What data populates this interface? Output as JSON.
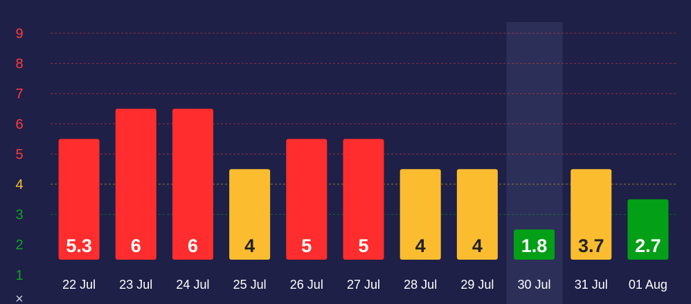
{
  "chart_data": {
    "type": "bar",
    "categories": [
      "22 Jul",
      "23 Jul",
      "24 Jul",
      "25 Jul",
      "26 Jul",
      "27 Jul",
      "28 Jul",
      "29 Jul",
      "30 Jul",
      "31 Jul",
      "01 Aug"
    ],
    "values": [
      5.3,
      6,
      6,
      4,
      5,
      5,
      4,
      4,
      1.8,
      3.7,
      2.7
    ],
    "value_labels": [
      "5.3",
      "6",
      "6",
      "4",
      "5",
      "5",
      "4",
      "4",
      "1.8",
      "3.7",
      "2.7"
    ],
    "bar_levels": [
      5.5,
      6.5,
      6.5,
      4.5,
      5.5,
      5.5,
      4.5,
      4.5,
      2.5,
      4.5,
      3.5
    ],
    "bar_colors": [
      "#ff2d2d",
      "#ff2d2d",
      "#ff2d2d",
      "#fbbd2f",
      "#ff2d2d",
      "#ff2d2d",
      "#fbbd2f",
      "#fbbd2f",
      "#039f17",
      "#fbbd2f",
      "#039f17"
    ],
    "label_colors": [
      "#ffffff",
      "#ffffff",
      "#ffffff",
      "#222222",
      "#ffffff",
      "#ffffff",
      "#222222",
      "#222222",
      "#ffffff",
      "#222222",
      "#ffffff"
    ],
    "highlighted_category": "30 Jul",
    "y_ticks": [
      "1",
      "2",
      "3",
      "4",
      "5",
      "6",
      "7",
      "8",
      "9"
    ],
    "y_tick_colors": [
      "#0fa31f",
      "#0fa31f",
      "#0fa31f",
      "#fbbd2f",
      "#ff3b3b",
      "#ff3b3b",
      "#ff3b3b",
      "#ff3b3b",
      "#ff3b3b"
    ],
    "ylim": [
      1,
      9
    ],
    "grid": true,
    "axis_corner_symbol": "×",
    "colors": {
      "background": "#1e2047",
      "highlight_band": "#2c2f57",
      "red": "#ff2d2d",
      "yellow": "#fbbd2f",
      "green": "#039f17",
      "x_tick_text": "#ffffff",
      "corner_symbol": "#c8cad8"
    }
  }
}
